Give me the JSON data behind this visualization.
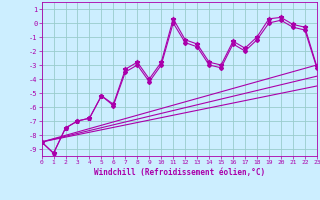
{
  "xlabel": "Windchill (Refroidissement éolien,°C)",
  "bg_color": "#cceeff",
  "line_color": "#aa00aa",
  "grid_color": "#99cccc",
  "xlim": [
    0,
    23
  ],
  "ylim": [
    -9.5,
    1.5
  ],
  "yticks": [
    1,
    0,
    -1,
    -2,
    -3,
    -4,
    -5,
    -6,
    -7,
    -8,
    -9
  ],
  "xticks": [
    0,
    1,
    2,
    3,
    4,
    5,
    6,
    7,
    8,
    9,
    10,
    11,
    12,
    13,
    14,
    15,
    16,
    17,
    18,
    19,
    20,
    21,
    22,
    23
  ],
  "series1_x": [
    0,
    1,
    2,
    3,
    4,
    5,
    6,
    7,
    8,
    9,
    10,
    11,
    12,
    13,
    14,
    15,
    16,
    17,
    18,
    19,
    20,
    21,
    22,
    23
  ],
  "series1_y": [
    -8.5,
    -9.3,
    -7.5,
    -7.0,
    -6.8,
    -5.2,
    -5.8,
    -3.3,
    -2.8,
    -4.0,
    -2.8,
    0.3,
    -1.2,
    -1.5,
    -2.8,
    -3.0,
    -1.3,
    -1.8,
    -1.0,
    0.3,
    0.4,
    -0.1,
    -0.3,
    -3.1
  ],
  "series2_x": [
    0,
    1,
    2,
    3,
    4,
    5,
    6,
    7,
    8,
    9,
    10,
    11,
    12,
    13,
    14,
    15,
    16,
    17,
    18,
    19,
    20,
    21,
    22,
    23
  ],
  "series2_y": [
    -8.5,
    -9.3,
    -7.5,
    -7.0,
    -6.8,
    -5.2,
    -5.9,
    -3.5,
    -3.0,
    -4.2,
    -3.0,
    0.0,
    -1.4,
    -1.7,
    -3.0,
    -3.2,
    -1.5,
    -2.0,
    -1.2,
    0.0,
    0.2,
    -0.3,
    -0.5,
    -3.2
  ],
  "line1_x": [
    0,
    23
  ],
  "line1_y": [
    -8.5,
    -3.0
  ],
  "line2_x": [
    0,
    23
  ],
  "line2_y": [
    -8.5,
    -3.8
  ],
  "line3_x": [
    0,
    23
  ],
  "line3_y": [
    -8.5,
    -4.5
  ]
}
